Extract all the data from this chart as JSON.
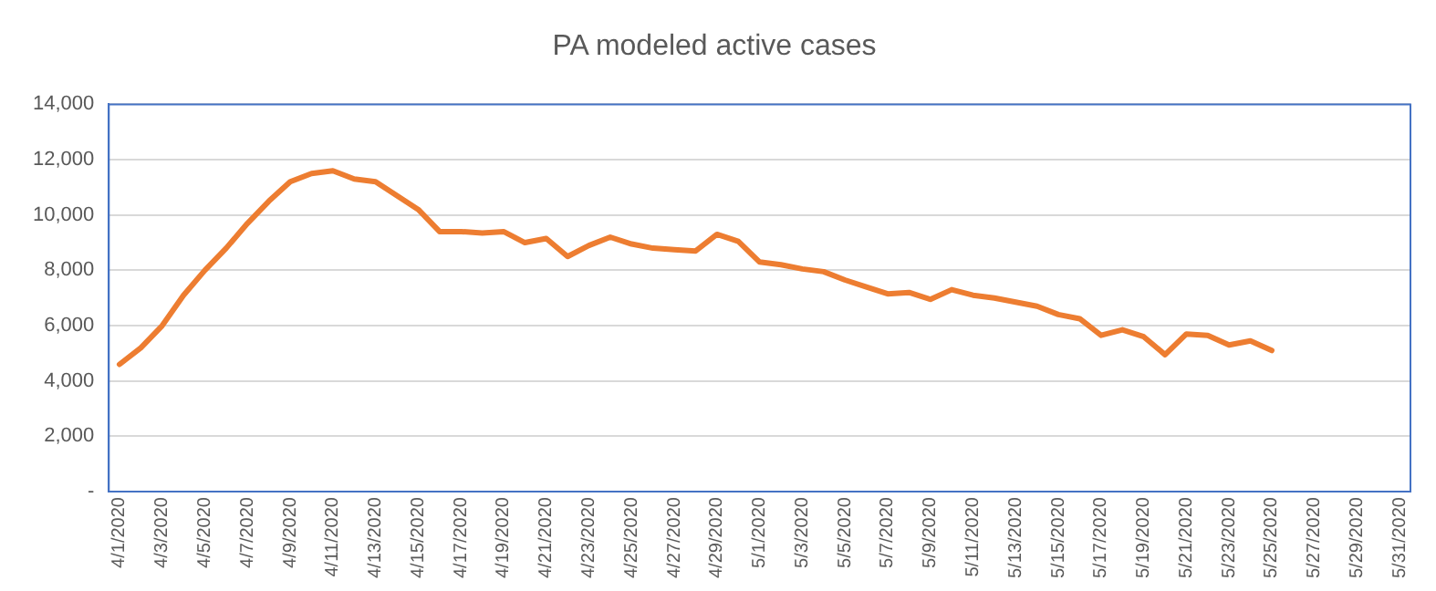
{
  "chart_data": {
    "type": "line",
    "title": "PA modeled active cases",
    "categories": [
      "4/1/2020",
      null,
      "4/3/2020",
      null,
      "4/5/2020",
      null,
      "4/7/2020",
      null,
      "4/9/2020",
      null,
      "4/11/2020",
      null,
      "4/13/2020",
      null,
      "4/15/2020",
      null,
      "4/17/2020",
      null,
      "4/19/2020",
      null,
      "4/21/2020",
      null,
      "4/23/2020",
      null,
      "4/25/2020",
      null,
      "4/27/2020",
      null,
      "4/29/2020",
      null,
      "5/1/2020",
      null,
      "5/3/2020",
      null,
      "5/5/2020",
      null,
      "5/7/2020",
      null,
      "5/9/2020",
      null,
      "5/11/2020",
      null,
      "5/13/2020",
      null,
      "5/15/2020",
      null,
      "5/17/2020",
      null,
      "5/19/2020",
      null,
      "5/21/2020",
      null,
      "5/23/2020",
      null,
      "5/25/2020",
      null,
      "5/27/2020",
      null,
      "5/29/2020",
      null,
      "5/31/2020"
    ],
    "series": [
      {
        "color": "#ed7d31",
        "values": [
          4600,
          5200,
          6000,
          7100,
          8000,
          8800,
          9700,
          10500,
          11200,
          11500,
          11600,
          11300,
          11200,
          10700,
          10200,
          9400,
          9400,
          9350,
          9400,
          9000,
          9150,
          8500,
          8900,
          9200,
          8950,
          8800,
          8750,
          8700,
          9300,
          9050,
          8300,
          8200,
          8050,
          7950,
          7650,
          7400,
          7150,
          7200,
          6950,
          7300,
          7100,
          7000,
          6850,
          6700,
          6400,
          6250,
          5650,
          5850,
          5600,
          4950,
          5700,
          5650,
          5300,
          5450,
          5100,
          null,
          null,
          null,
          null,
          null,
          null
        ]
      }
    ],
    "ylim": [
      0,
      14000
    ],
    "yticks": [
      {
        "value": 0,
        "label": "-"
      },
      {
        "value": 2000,
        "label": "2,000"
      },
      {
        "value": 4000,
        "label": "4,000"
      },
      {
        "value": 6000,
        "label": "6,000"
      },
      {
        "value": 8000,
        "label": "8,000"
      },
      {
        "value": 10000,
        "label": "10,000"
      },
      {
        "value": 12000,
        "label": "12,000"
      },
      {
        "value": 14000,
        "label": "14,000"
      }
    ],
    "grid": "y",
    "legend": false,
    "marker": "none",
    "line_style": "solid"
  }
}
